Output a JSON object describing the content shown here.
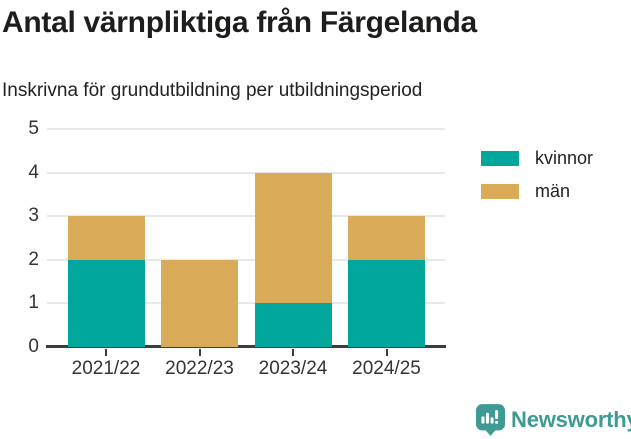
{
  "chart_data": {
    "type": "bar",
    "stacked": true,
    "title": "Antal värnpliktiga från Färgelanda",
    "subtitle": "Inskrivna för grundutbildning per utbildningsperiod",
    "categories": [
      "2021/22",
      "2022/23",
      "2023/24",
      "2024/25"
    ],
    "series": [
      {
        "name": "kvinnor",
        "color": "#00a59c",
        "values": [
          2,
          0,
          1,
          2
        ]
      },
      {
        "name": "män",
        "color": "#d9ab59",
        "values": [
          1,
          2,
          3,
          1
        ]
      }
    ],
    "totals": [
      3,
      2,
      4,
      3
    ],
    "ylim": [
      0,
      5
    ],
    "yticks": [
      0,
      1,
      2,
      3,
      4,
      5
    ],
    "xlabel": "",
    "ylabel": "",
    "grid": true,
    "legend_position": "right"
  },
  "colors": {
    "grid": "#e8e8e8",
    "axis": "#3d3d3d",
    "text": "#333333",
    "title": "#1d1d1b",
    "brand": "#3d9b93"
  },
  "branding": {
    "wordmark": "Newsworthy"
  }
}
